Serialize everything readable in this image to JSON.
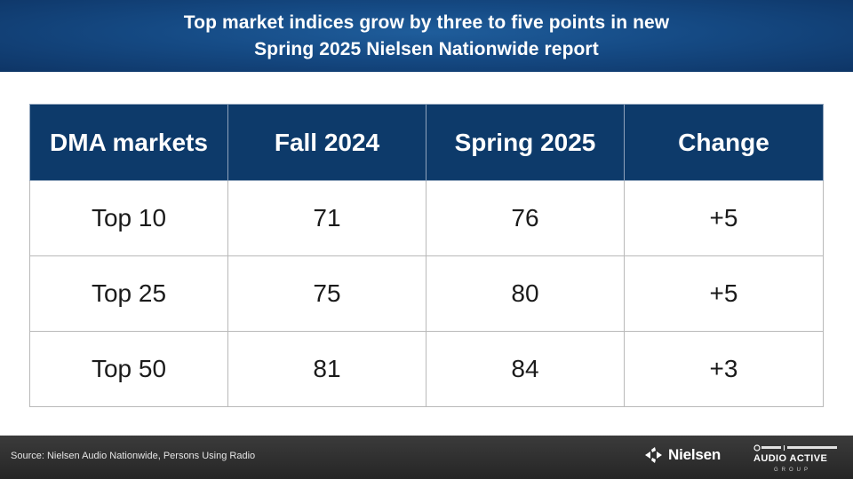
{
  "header": {
    "title_line1": "Top market indices grow by three to five points in new",
    "title_line2": "Spring 2025 Nielsen Nationwide report"
  },
  "table": {
    "columns": [
      "DMA markets",
      "Fall 2024",
      "Spring 2025",
      "Change"
    ],
    "rows": [
      [
        "Top 10",
        "71",
        "76",
        "+5"
      ],
      [
        "Top 25",
        "75",
        "80",
        "+5"
      ],
      [
        "Top 50",
        "81",
        "84",
        "+3"
      ]
    ]
  },
  "footer": {
    "source": "Source: Nielsen Audio Nationwide, Persons Using Radio",
    "nielsen_logo_text": "Nielsen",
    "aag_logo_line1": "SiriusXM | Westwood One",
    "aag_logo_line2": "AUDIO ACTIVE",
    "aag_logo_line3": "G R O U P"
  },
  "colors": {
    "header_blue": "#154a84",
    "table_header_navy": "#0d3a6a",
    "footer_dark": "#2f2f2f"
  },
  "icons": [
    "nielsen-logo-mark",
    "audio-active-group-logo"
  ]
}
